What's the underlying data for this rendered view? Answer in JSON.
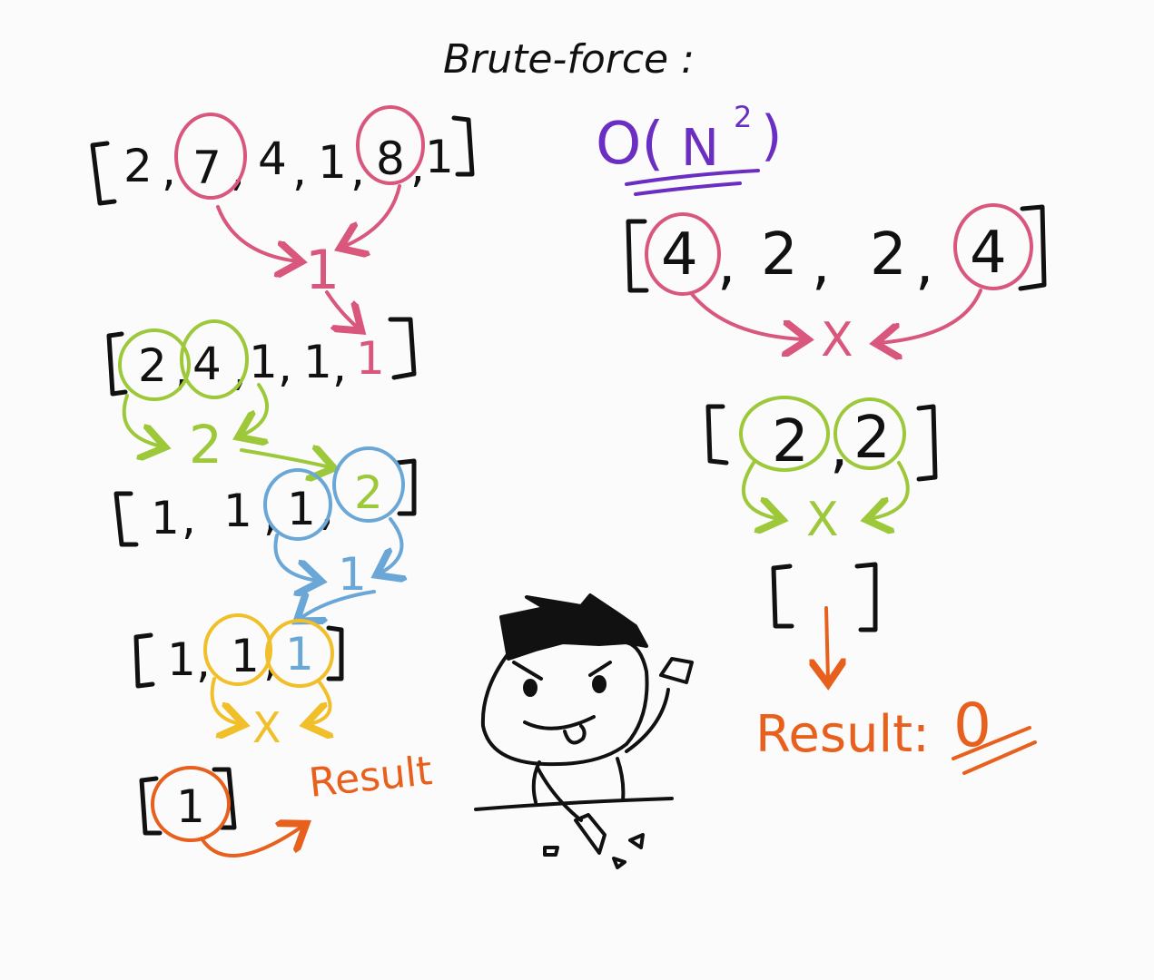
{
  "title": "Brute-force :",
  "complexity": {
    "o": "O(",
    "n": "N",
    "exp": "2",
    "close": ")"
  },
  "colors": {
    "ink": "#111111",
    "pink": "#d9567c",
    "green": "#9cc83a",
    "blue": "#6aa7d6",
    "yellow": "#f0bf2a",
    "orange": "#e8601e",
    "purple": "#6a2fc2"
  },
  "left": {
    "array1": [
      "2",
      "7",
      "4",
      "1",
      "8",
      "1"
    ],
    "diff1": "1",
    "array2": [
      "2",
      "4",
      "1",
      "1",
      "1"
    ],
    "diff2": "2",
    "array3": [
      "1",
      "1",
      "1",
      "2"
    ],
    "diff3": "1",
    "array4": [
      "1",
      "1",
      "1"
    ],
    "cross": "X",
    "array5": [
      "1"
    ],
    "result_label": "Result"
  },
  "right": {
    "array1": [
      "4",
      "2",
      "2",
      "4"
    ],
    "cross1": "X",
    "array2": [
      "2",
      "2"
    ],
    "cross2": "X",
    "result_label": "Result:",
    "result_value": "0"
  }
}
